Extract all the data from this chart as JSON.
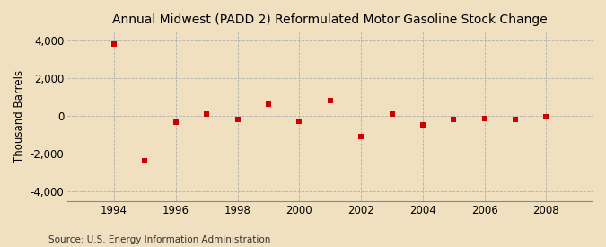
{
  "title": "Annual Midwest (PADD 2) Reformulated Motor Gasoline Stock Change",
  "ylabel": "Thousand Barrels",
  "source": "Source: U.S. Energy Information Administration",
  "background_color": "#f0e0c0",
  "plot_background_color": "#f0e0c0",
  "marker_color": "#cc0000",
  "years": [
    1994,
    1995,
    1996,
    1997,
    1998,
    1999,
    2000,
    2001,
    2002,
    2003,
    2004,
    2005,
    2006,
    2007,
    2008
  ],
  "values": [
    3820,
    -2380,
    -340,
    110,
    -190,
    620,
    -300,
    820,
    -1080,
    110,
    -490,
    -195,
    -155,
    -195,
    -50
  ],
  "ylim": [
    -4500,
    4500
  ],
  "xlim": [
    1992.5,
    2009.5
  ],
  "yticks": [
    -4000,
    -2000,
    0,
    2000,
    4000
  ],
  "xticks": [
    1994,
    1996,
    1998,
    2000,
    2002,
    2004,
    2006,
    2008
  ],
  "title_fontsize": 10,
  "label_fontsize": 8.5,
  "source_fontsize": 7.5,
  "tick_fontsize": 8.5
}
